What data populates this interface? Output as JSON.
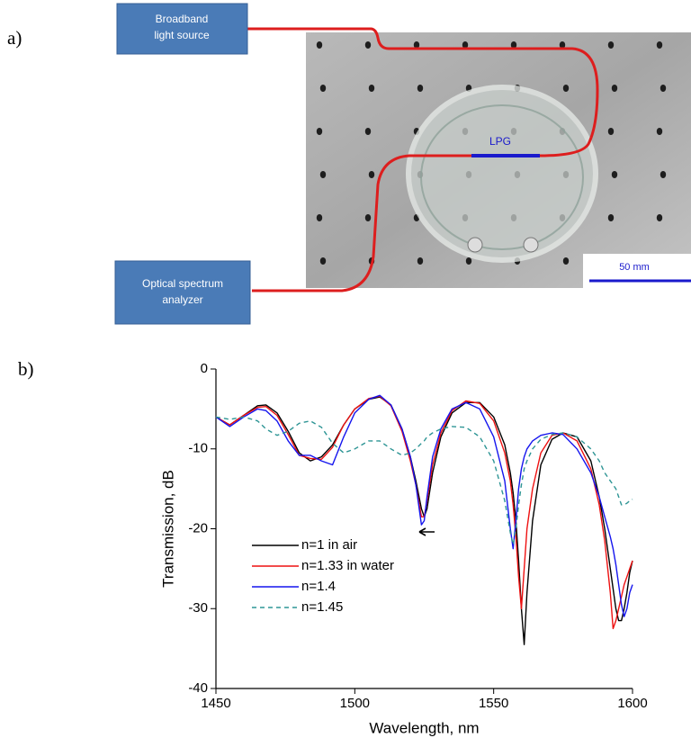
{
  "panel_labels": [
    "a)",
    "b)"
  ],
  "photo": {
    "source_label": [
      "Broadband",
      "light source"
    ],
    "analyzer_label": [
      "Optical spectrum",
      "analyzer"
    ],
    "grating_label": "LPG",
    "scale_label": "50 mm"
  },
  "chart_data": {
    "type": "line",
    "xlabel": "Wavelength, nm",
    "ylabel": "Transmission, dB",
    "xlim": [
      1450,
      1600
    ],
    "xticks": [
      1450,
      1500,
      1550,
      1600
    ],
    "ylim": [
      -40,
      0
    ],
    "yticks": [
      0,
      -10,
      -20,
      -30,
      -40
    ],
    "legend": "lower left",
    "x": [
      1450,
      1455,
      1460,
      1465,
      1468,
      1472,
      1476,
      1480,
      1484,
      1488,
      1492,
      1496,
      1500,
      1505,
      1509,
      1513,
      1517,
      1520,
      1522,
      1524,
      1525,
      1526,
      1528,
      1531,
      1535,
      1540,
      1545,
      1550,
      1554,
      1556,
      1557,
      1558,
      1559,
      1560,
      1561,
      1562,
      1564,
      1567,
      1571,
      1575,
      1580,
      1585,
      1588,
      1590,
      1592,
      1593,
      1594,
      1595,
      1596,
      1597,
      1598,
      1599,
      1600
    ],
    "series": [
      {
        "name": "n=1 in air",
        "color": "#000000",
        "dashed": false,
        "values": [
          -6,
          -7,
          -5.8,
          -4.6,
          -4.5,
          -5.5,
          -7.8,
          -10.5,
          -11.5,
          -11,
          -9.5,
          -7,
          -5,
          -3.8,
          -3.5,
          -4.5,
          -7.5,
          -11,
          -14,
          -17.5,
          -18.5,
          -17.5,
          -13,
          -8.5,
          -5.5,
          -4.2,
          -4.2,
          -6,
          -9.5,
          -13,
          -15.5,
          -19,
          -24,
          -30,
          -34.5,
          -28,
          -19,
          -12,
          -8.8,
          -8,
          -8.5,
          -11.5,
          -16,
          -20,
          -25,
          -27.5,
          -30,
          -31.5,
          -31.5,
          -30,
          -28,
          -25.5,
          -24
        ]
      },
      {
        "name": "n=1.33 in water",
        "color": "#ee1111",
        "dashed": false,
        "values": [
          -6,
          -7,
          -5.8,
          -4.8,
          -4.7,
          -5.8,
          -8.2,
          -10.8,
          -11.2,
          -11.3,
          -9.8,
          -7,
          -5,
          -3.7,
          -3.4,
          -4.6,
          -7.8,
          -11.5,
          -14.5,
          -18.5,
          -18.5,
          -16.5,
          -12,
          -8,
          -5.2,
          -4,
          -4.3,
          -6.5,
          -10.5,
          -14,
          -17,
          -21,
          -26,
          -30,
          -25,
          -20,
          -15,
          -10.5,
          -8.3,
          -8,
          -9,
          -12.5,
          -17,
          -21.5,
          -28,
          -32.5,
          -31.5,
          -30,
          -28.5,
          -27,
          -26,
          -25,
          -24
        ]
      },
      {
        "name": "n=1.4",
        "color": "#1515ee",
        "dashed": false,
        "values": [
          -6,
          -7.2,
          -6,
          -5,
          -5.2,
          -6.5,
          -9,
          -10.8,
          -10.8,
          -11.5,
          -12,
          -8.5,
          -5.5,
          -3.8,
          -3.3,
          -4.5,
          -7.5,
          -11,
          -14.5,
          -19.5,
          -19,
          -16,
          -11,
          -7.5,
          -5,
          -4.2,
          -5,
          -8.5,
          -14,
          -20,
          -22.5,
          -19,
          -15,
          -12.5,
          -11,
          -10,
          -9,
          -8.3,
          -8,
          -8.2,
          -10,
          -13,
          -16,
          -18.5,
          -21,
          -22.5,
          -24.5,
          -27,
          -29.5,
          -31,
          -30,
          -28,
          -27
        ]
      },
      {
        "name": "n=1.45",
        "color": "#2e9595",
        "dashed": true,
        "values": [
          -6,
          -6.3,
          -6,
          -6.5,
          -7.5,
          -8.3,
          -7.8,
          -6.8,
          -6.5,
          -7.3,
          -9.3,
          -10.5,
          -10,
          -9,
          -9,
          -10,
          -10.8,
          -10.5,
          -10,
          -9.3,
          -9,
          -8.5,
          -8,
          -7.5,
          -7.2,
          -7.3,
          -8.5,
          -11.5,
          -16.5,
          -20.5,
          -22,
          -20,
          -17,
          -14.5,
          -12.5,
          -11.5,
          -10,
          -8.8,
          -8.2,
          -8,
          -8.5,
          -10,
          -11.5,
          -13,
          -14,
          -14.5,
          -15,
          -16,
          -17,
          -17,
          -16.8,
          -16.5,
          -16.3
        ]
      }
    ]
  }
}
